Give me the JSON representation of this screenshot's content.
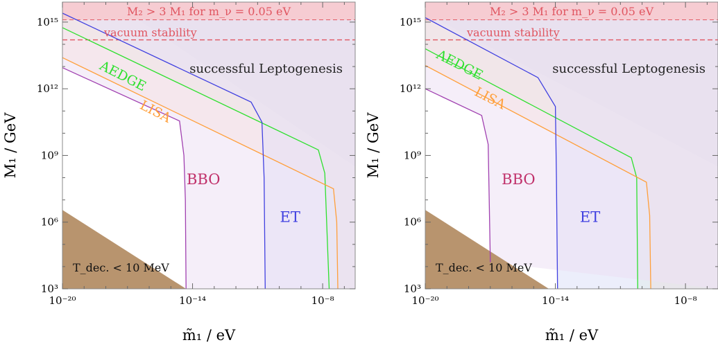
{
  "chart_data": [
    {
      "type": "area",
      "xlabel": "m̃₁ / eV",
      "ylabel": "M₁ / GeV",
      "x_scale": "log",
      "y_scale": "log",
      "xlim_log10": [
        -20,
        -6.5
      ],
      "ylim_log10": [
        3,
        15.9
      ],
      "x_ticks": [
        {
          "log": -20,
          "label": "10⁻²⁰"
        },
        {
          "log": -14,
          "label": "10⁻¹⁴"
        },
        {
          "log": -8,
          "label": "10⁻⁸"
        }
      ],
      "y_ticks": [
        {
          "log": 3,
          "label": "10³"
        },
        {
          "log": 6,
          "label": "10⁶"
        },
        {
          "log": 9,
          "label": "10⁹"
        },
        {
          "log": 12,
          "label": "10¹²"
        },
        {
          "log": 15,
          "label": "10¹⁵"
        }
      ],
      "regions": {
        "m2_bound": {
          "text": "M₂ > 3 M₁ for m_ν = 0.05 eV",
          "y_from_log10": 15.1,
          "color": "#f8c8cc",
          "line_color": "#e05560"
        },
        "vacuum": {
          "text": "vacuum stability",
          "y_log10": 14.2,
          "color": "#e05560"
        },
        "leptogenesis": {
          "text": "successful Leptogenesis",
          "color": "#c9d0d0"
        },
        "decoupling": {
          "text": "T_dec. < 10 MeV",
          "color": "#b8946e"
        }
      },
      "series": [
        {
          "name": "AEDGE",
          "color": "#2ee02e",
          "fill": "#e4f7d8",
          "label_pos": [
            -17.3,
            12.4
          ],
          "curve": [
            [
              -20,
              14.75
            ],
            [
              -8.2,
              9.25
            ],
            [
              -7.9,
              8.2
            ],
            [
              -7.7,
              3
            ]
          ]
        },
        {
          "name": "LISA",
          "color": "#ff9f3a",
          "fill": "#fde3cf",
          "label_pos": [
            -15.8,
            10.8
          ],
          "curve": [
            [
              -20,
              13.4
            ],
            [
              -7.5,
              7.5
            ],
            [
              -7.35,
              6.0
            ],
            [
              -7.3,
              3
            ]
          ]
        },
        {
          "name": "BBO",
          "color": "#a040b0",
          "fill": "#ece0f4",
          "label_pos": [
            -13.5,
            7.7
          ],
          "curve": [
            [
              -20,
              12.95
            ],
            [
              -14.6,
              10.55
            ],
            [
              -14.4,
              9.0
            ],
            [
              -14.33,
              7.0
            ],
            [
              -14.3,
              3
            ]
          ]
        },
        {
          "name": "ET",
          "color": "#4040e0",
          "fill": "#dde0f8",
          "label_pos": [
            -9.5,
            6.0
          ],
          "curve": [
            [
              -20,
              15.4
            ],
            [
              -11.3,
              11.4
            ],
            [
              -10.8,
              10.5
            ],
            [
              -10.7,
              8.0
            ],
            [
              -10.65,
              3
            ]
          ]
        }
      ],
      "leptogenesis_edge": [
        [
          -16.8,
          15.3
        ],
        [
          -6.5,
          8.5
        ]
      ],
      "decoupling_edge": [
        [
          -20,
          6.55
        ],
        [
          -14.3,
          3
        ]
      ]
    },
    {
      "type": "area",
      "xlabel": "m̃₁ / eV",
      "ylabel": "M₁ / GeV",
      "x_scale": "log",
      "y_scale": "log",
      "xlim_log10": [
        -20,
        -6.5
      ],
      "ylim_log10": [
        3,
        15.9
      ],
      "x_ticks": [
        {
          "log": -20,
          "label": "10⁻²⁰"
        },
        {
          "log": -14,
          "label": "10⁻¹⁴"
        },
        {
          "log": -8,
          "label": "10⁻⁸"
        }
      ],
      "y_ticks": [
        {
          "log": 3,
          "label": "10³"
        },
        {
          "log": 6,
          "label": "10⁶"
        },
        {
          "log": 9,
          "label": "10⁹"
        },
        {
          "log": 12,
          "label": "10¹²"
        },
        {
          "log": 15,
          "label": "10¹⁵"
        }
      ],
      "regions": {
        "m2_bound": {
          "text": "M₂ > 3 M₁ for m_ν = 0.05 eV",
          "y_from_log10": 15.1,
          "color": "#f8c8cc",
          "line_color": "#e05560"
        },
        "vacuum": {
          "text": "vacuum stability",
          "y_log10": 14.2,
          "color": "#e05560"
        },
        "leptogenesis": {
          "text": "successful Leptogenesis",
          "color": "#c9d0d0"
        },
        "decoupling": {
          "text": "T_dec. < 10 MeV",
          "color": "#b8946e"
        }
      },
      "series": [
        {
          "name": "AEDGE",
          "color": "#2ee02e",
          "fill": "#e4f7d8",
          "label_pos": [
            -18.5,
            12.9
          ],
          "curve": [
            [
              -20,
              13.8
            ],
            [
              -10.5,
              8.9
            ],
            [
              -10.25,
              8.0
            ],
            [
              -10.2,
              3
            ]
          ]
        },
        {
          "name": "LISA",
          "color": "#ff9f3a",
          "fill": "#fde3cf",
          "label_pos": [
            -17.1,
            11.4
          ],
          "curve": [
            [
              -20,
              13.05
            ],
            [
              -9.8,
              7.8
            ],
            [
              -9.65,
              6.3
            ],
            [
              -9.6,
              3
            ]
          ]
        },
        {
          "name": "BBO",
          "color": "#a040b0",
          "fill": "#ece0f4",
          "label_pos": [
            -15.7,
            7.7
          ],
          "curve": [
            [
              -20,
              12.0
            ],
            [
              -17.4,
              10.8
            ],
            [
              -17.1,
              9.5
            ],
            [
              -17.05,
              7.0
            ],
            [
              -17.0,
              4.2
            ]
          ]
        },
        {
          "name": "ET",
          "color": "#4040e0",
          "fill": "#dde0f8",
          "label_pos": [
            -12.4,
            6.0
          ],
          "curve": [
            [
              -20,
              15.2
            ],
            [
              -14.8,
              12.5
            ],
            [
              -14.0,
              11.2
            ],
            [
              -13.95,
              8.0
            ],
            [
              -13.9,
              3
            ]
          ]
        }
      ],
      "leptogenesis_edge": [
        [
          -20,
          15.4
        ],
        [
          -6.5,
          8.5
        ]
      ],
      "decoupling_edge": [
        [
          -20,
          6.55
        ],
        [
          -14.3,
          3
        ]
      ]
    }
  ]
}
